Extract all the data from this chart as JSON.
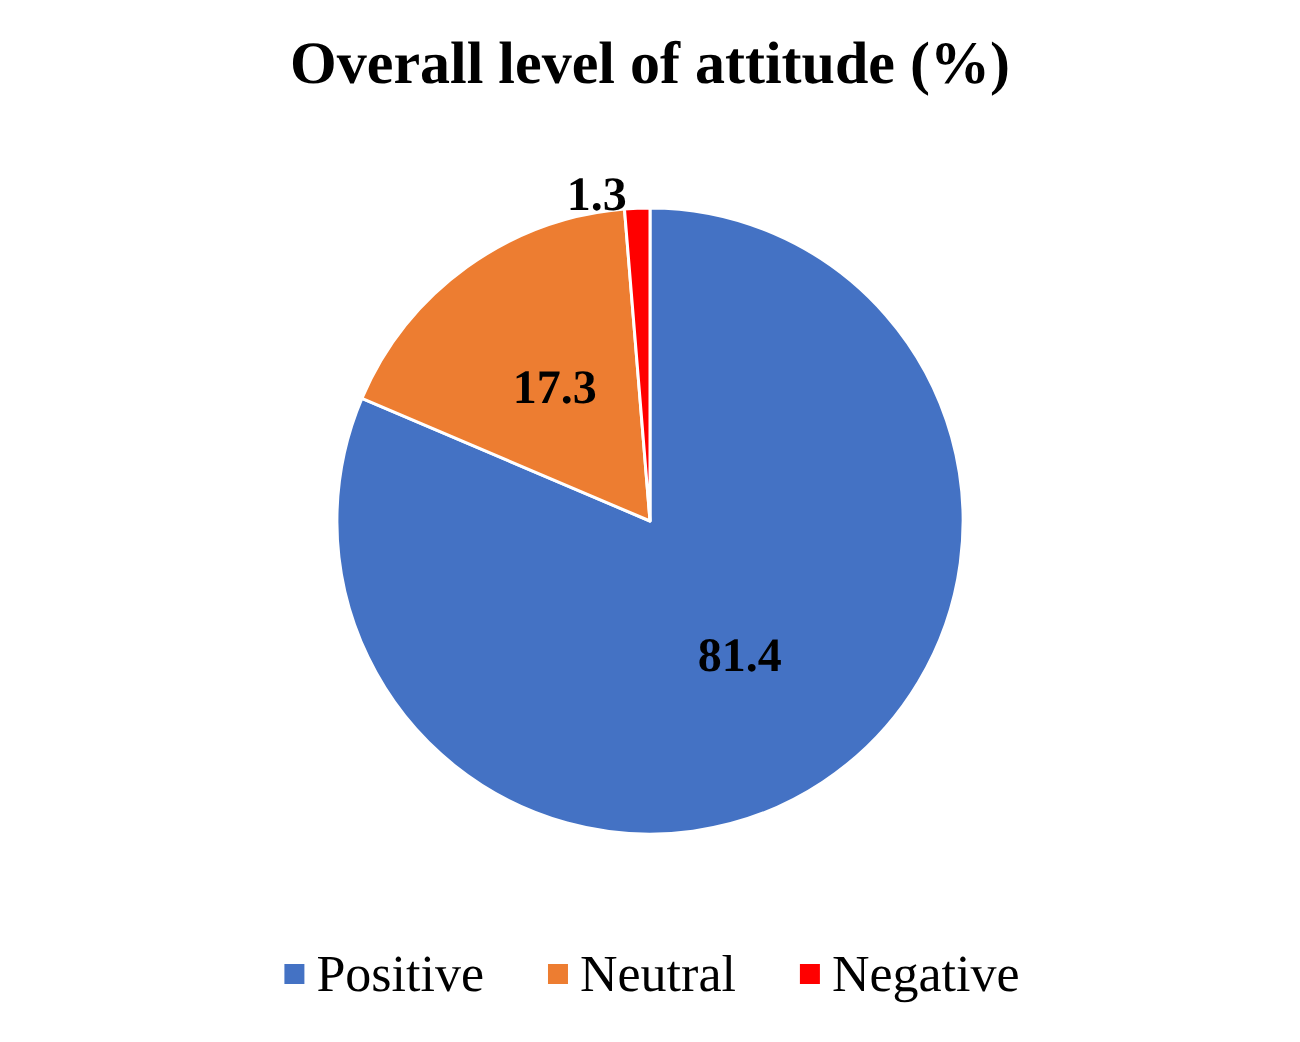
{
  "chart_data": {
    "type": "pie",
    "title": "Overall level of attitude (%)",
    "categories": [
      "Positive",
      "Neutral",
      "Negative"
    ],
    "values": [
      81.4,
      17.3,
      1.3
    ],
    "colors": [
      "#4472c4",
      "#ed7d31",
      "#ff0000"
    ],
    "data_labels": true,
    "legend": "bottom"
  }
}
